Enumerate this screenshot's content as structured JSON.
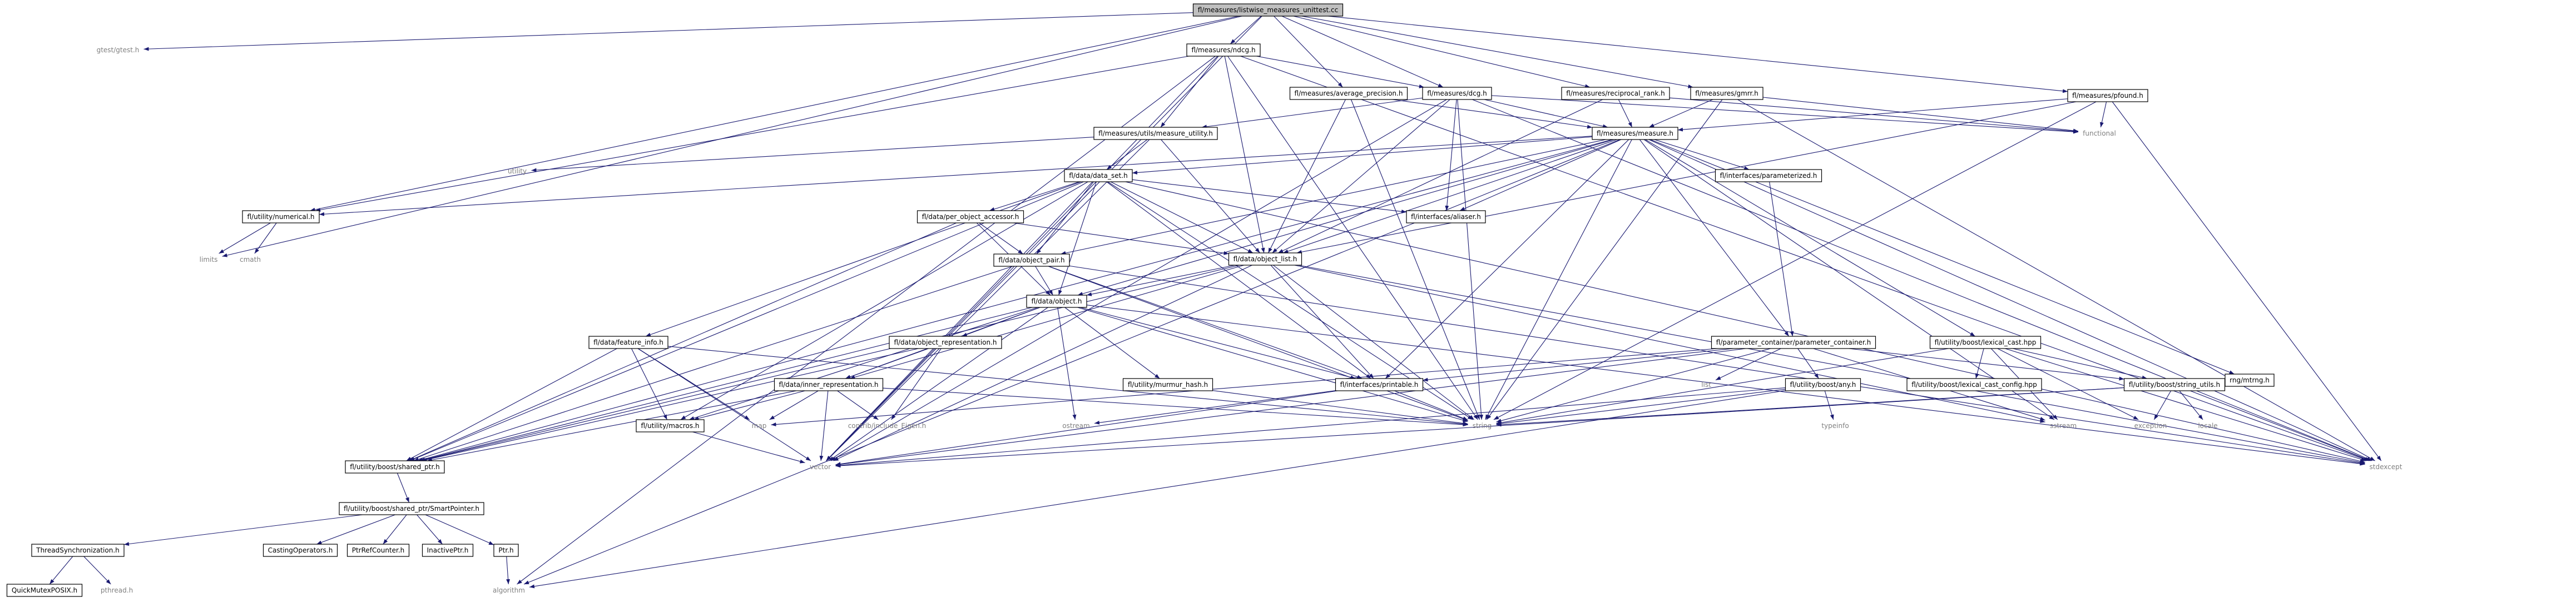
{
  "colors": {
    "edge": "#191970",
    "box_border": "#000000",
    "root_fill": "#bfbfbf",
    "box_fill": "#ffffff",
    "plain_text": "#808080",
    "box_text": "#000000"
  },
  "nodes": [
    {
      "id": "root",
      "label": "fl/measures/listwise_measures_unittest.cc",
      "kind": "root"
    },
    {
      "id": "gtest",
      "label": "gtest/gtest.h",
      "kind": "plain"
    },
    {
      "id": "ndcg",
      "label": "fl/measures/ndcg.h",
      "kind": "box"
    },
    {
      "id": "avgprec",
      "label": "fl/measures/average_precision.h",
      "kind": "box"
    },
    {
      "id": "dcg",
      "label": "fl/measures/dcg.h",
      "kind": "box"
    },
    {
      "id": "recip",
      "label": "fl/measures/reciprocal_rank.h",
      "kind": "box"
    },
    {
      "id": "gmrr",
      "label": "fl/measures/gmrr.h",
      "kind": "box"
    },
    {
      "id": "pfound",
      "label": "fl/measures/pfound.h",
      "kind": "box"
    },
    {
      "id": "measureutil",
      "label": "fl/measures/utils/measure_utility.h",
      "kind": "box"
    },
    {
      "id": "measure",
      "label": "fl/measures/measure.h",
      "kind": "box"
    },
    {
      "id": "functional",
      "label": "functional",
      "kind": "plain"
    },
    {
      "id": "utility",
      "label": "utility",
      "kind": "plain"
    },
    {
      "id": "dataset",
      "label": "fl/data/data_set.h",
      "kind": "box"
    },
    {
      "id": "paramized",
      "label": "fl/interfaces/parameterized.h",
      "kind": "box"
    },
    {
      "id": "numerical",
      "label": "fl/utility/numerical.h",
      "kind": "box"
    },
    {
      "id": "aliaser",
      "label": "fl/interfaces/aliaser.h",
      "kind": "box"
    },
    {
      "id": "perobj",
      "label": "fl/data/per_object_accessor.h",
      "kind": "box"
    },
    {
      "id": "limits",
      "label": "limits",
      "kind": "plain"
    },
    {
      "id": "cmath",
      "label": "cmath",
      "kind": "plain"
    },
    {
      "id": "objlist",
      "label": "fl/data/object_list.h",
      "kind": "box"
    },
    {
      "id": "objpair",
      "label": "fl/data/object_pair.h",
      "kind": "box"
    },
    {
      "id": "object",
      "label": "fl/data/object.h",
      "kind": "box"
    },
    {
      "id": "featinfo",
      "label": "fl/data/feature_info.h",
      "kind": "box"
    },
    {
      "id": "objrepr",
      "label": "fl/data/object_representation.h",
      "kind": "box"
    },
    {
      "id": "paramcont",
      "label": "fl/parameter_container/parameter_container.h",
      "kind": "box"
    },
    {
      "id": "lexcast",
      "label": "fl/utility/boost/lexical_cast.hpp",
      "kind": "box"
    },
    {
      "id": "innerrepr",
      "label": "fl/data/inner_representation.h",
      "kind": "box"
    },
    {
      "id": "murmur",
      "label": "fl/utility/murmur_hash.h",
      "kind": "box"
    },
    {
      "id": "printable",
      "label": "fl/interfaces/printable.h",
      "kind": "box"
    },
    {
      "id": "list",
      "label": "list",
      "kind": "plain"
    },
    {
      "id": "anyh",
      "label": "fl/utility/boost/any.h",
      "kind": "box"
    },
    {
      "id": "lexcfg",
      "label": "fl/utility/boost/lexical_cast_config.hpp",
      "kind": "box"
    },
    {
      "id": "strutils",
      "label": "fl/utility/boost/string_utils.h",
      "kind": "box"
    },
    {
      "id": "mtrng",
      "label": "rng/mtrng.h",
      "kind": "box"
    },
    {
      "id": "macros",
      "label": "fl/utility/macros.h",
      "kind": "box"
    },
    {
      "id": "map",
      "label": "map",
      "kind": "plain"
    },
    {
      "id": "eigen",
      "label": "contrib/include_Eigen.h",
      "kind": "plain"
    },
    {
      "id": "ostream",
      "label": "ostream",
      "kind": "plain"
    },
    {
      "id": "string",
      "label": "string",
      "kind": "plain"
    },
    {
      "id": "typeinfo",
      "label": "typeinfo",
      "kind": "plain"
    },
    {
      "id": "sstream",
      "label": "sstream",
      "kind": "plain"
    },
    {
      "id": "exception",
      "label": "exception",
      "kind": "plain"
    },
    {
      "id": "locale",
      "label": "locale",
      "kind": "plain"
    },
    {
      "id": "sharedptr",
      "label": "fl/utility/boost/shared_ptr.h",
      "kind": "box"
    },
    {
      "id": "vector",
      "label": "vector",
      "kind": "plain"
    },
    {
      "id": "stdexcept",
      "label": "stdexcept",
      "kind": "plain"
    },
    {
      "id": "smartptr",
      "label": "fl/utility/boost/shared_ptr/SmartPointer.h",
      "kind": "box"
    },
    {
      "id": "threadsync",
      "label": "ThreadSynchronization.h",
      "kind": "box"
    },
    {
      "id": "castops",
      "label": "CastingOperators.h",
      "kind": "box"
    },
    {
      "id": "ptrrefc",
      "label": "PtrRefCounter.h",
      "kind": "box"
    },
    {
      "id": "inactptr",
      "label": "InactivePtr.h",
      "kind": "box"
    },
    {
      "id": "ptrh",
      "label": "Ptr.h",
      "kind": "box"
    },
    {
      "id": "qmutex",
      "label": "QuickMutexPOSIX.h",
      "kind": "box"
    },
    {
      "id": "pthread",
      "label": "pthread.h",
      "kind": "plain"
    },
    {
      "id": "algorithm",
      "label": "algorithm",
      "kind": "plain"
    }
  ],
  "edges": [
    [
      "root",
      "gtest"
    ],
    [
      "root",
      "ndcg"
    ],
    [
      "root",
      "avgprec"
    ],
    [
      "root",
      "dcg"
    ],
    [
      "root",
      "recip"
    ],
    [
      "root",
      "gmrr"
    ],
    [
      "root",
      "pfound"
    ],
    [
      "root",
      "numerical"
    ],
    [
      "root",
      "limits"
    ],
    [
      "root",
      "vector"
    ],
    [
      "ndcg",
      "dcg"
    ],
    [
      "ndcg",
      "measureutil"
    ],
    [
      "ndcg",
      "numerical"
    ],
    [
      "ndcg",
      "objlist"
    ],
    [
      "ndcg",
      "algorithm"
    ],
    [
      "ndcg",
      "string"
    ],
    [
      "ndcg",
      "vector"
    ],
    [
      "ndcg",
      "stdexcept"
    ],
    [
      "avgprec",
      "measure"
    ],
    [
      "avgprec",
      "objlist"
    ],
    [
      "avgprec",
      "string"
    ],
    [
      "dcg",
      "measure"
    ],
    [
      "dcg",
      "measureutil"
    ],
    [
      "dcg",
      "objlist"
    ],
    [
      "dcg",
      "aliaser"
    ],
    [
      "dcg",
      "string"
    ],
    [
      "dcg",
      "functional"
    ],
    [
      "dcg",
      "stdexcept"
    ],
    [
      "dcg",
      "vector"
    ],
    [
      "recip",
      "measure"
    ],
    [
      "recip",
      "objlist"
    ],
    [
      "recip",
      "functional"
    ],
    [
      "gmrr",
      "measure"
    ],
    [
      "gmrr",
      "string"
    ],
    [
      "gmrr",
      "functional"
    ],
    [
      "gmrr",
      "stdexcept"
    ],
    [
      "pfound",
      "measure"
    ],
    [
      "pfound",
      "functional"
    ],
    [
      "pfound",
      "objlist"
    ],
    [
      "pfound",
      "string"
    ],
    [
      "pfound",
      "stdexcept"
    ],
    [
      "measureutil",
      "utility"
    ],
    [
      "measureutil",
      "dataset"
    ],
    [
      "measureutil",
      "objlist"
    ],
    [
      "measureutil",
      "vector"
    ],
    [
      "measure",
      "dataset"
    ],
    [
      "measure",
      "paramized"
    ],
    [
      "measure",
      "numerical"
    ],
    [
      "measure",
      "aliaser"
    ],
    [
      "measure",
      "objlist"
    ],
    [
      "measure",
      "objpair"
    ],
    [
      "measure",
      "object"
    ],
    [
      "measure",
      "printable"
    ],
    [
      "measure",
      "paramcont"
    ],
    [
      "measure",
      "lexcast"
    ],
    [
      "measure",
      "mtrng"
    ],
    [
      "measure",
      "string"
    ],
    [
      "measure",
      "sharedptr"
    ],
    [
      "measure",
      "sstream"
    ],
    [
      "measure",
      "stdexcept"
    ],
    [
      "measure",
      "algorithm"
    ],
    [
      "paramized",
      "paramcont"
    ],
    [
      "numerical",
      "limits"
    ],
    [
      "numerical",
      "cmath"
    ],
    [
      "dataset",
      "perobj"
    ],
    [
      "dataset",
      "objlist"
    ],
    [
      "dataset",
      "objpair"
    ],
    [
      "dataset",
      "object"
    ],
    [
      "dataset",
      "featinfo"
    ],
    [
      "dataset",
      "macros"
    ],
    [
      "dataset",
      "printable"
    ],
    [
      "dataset",
      "aliaser"
    ],
    [
      "dataset",
      "sharedptr"
    ],
    [
      "dataset",
      "vector"
    ],
    [
      "dataset",
      "string"
    ],
    [
      "dataset",
      "stdexcept"
    ],
    [
      "perobj",
      "objlist"
    ],
    [
      "perobj",
      "objpair"
    ],
    [
      "perobj",
      "object"
    ],
    [
      "perobj",
      "sharedptr"
    ],
    [
      "objlist",
      "object"
    ],
    [
      "objlist",
      "printable"
    ],
    [
      "objlist",
      "sharedptr"
    ],
    [
      "objlist",
      "innerrepr"
    ],
    [
      "objlist",
      "string"
    ],
    [
      "objlist",
      "vector"
    ],
    [
      "objlist",
      "stdexcept"
    ],
    [
      "objlist",
      "sstream"
    ],
    [
      "objpair",
      "object"
    ],
    [
      "objpair",
      "sharedptr"
    ],
    [
      "objpair",
      "printable"
    ],
    [
      "objpair",
      "string"
    ],
    [
      "objpair",
      "stdexcept"
    ],
    [
      "object",
      "objrepr"
    ],
    [
      "object",
      "innerrepr"
    ],
    [
      "object",
      "murmur"
    ],
    [
      "object",
      "printable"
    ],
    [
      "object",
      "macros"
    ],
    [
      "object",
      "sharedptr"
    ],
    [
      "object",
      "vector"
    ],
    [
      "object",
      "string"
    ],
    [
      "object",
      "ostream"
    ],
    [
      "object",
      "stdexcept"
    ],
    [
      "featinfo",
      "macros"
    ],
    [
      "featinfo",
      "sharedptr"
    ],
    [
      "featinfo",
      "map"
    ],
    [
      "featinfo",
      "string"
    ],
    [
      "featinfo",
      "vector"
    ],
    [
      "objrepr",
      "innerrepr"
    ],
    [
      "objrepr",
      "eigen"
    ],
    [
      "objrepr",
      "sharedptr"
    ],
    [
      "innerrepr",
      "macros"
    ],
    [
      "innerrepr",
      "map"
    ],
    [
      "innerrepr",
      "eigen"
    ],
    [
      "innerrepr",
      "vector"
    ],
    [
      "innerrepr",
      "sharedptr"
    ],
    [
      "innerrepr",
      "string"
    ],
    [
      "paramcont",
      "anyh"
    ],
    [
      "paramcont",
      "strutils"
    ],
    [
      "paramcont",
      "list"
    ],
    [
      "paramcont",
      "map"
    ],
    [
      "paramcont",
      "string"
    ],
    [
      "paramcont",
      "vector"
    ],
    [
      "paramcont",
      "printable"
    ],
    [
      "paramcont",
      "sstream"
    ],
    [
      "lexcast",
      "lexcfg"
    ],
    [
      "lexcast",
      "strutils"
    ],
    [
      "lexcast",
      "string"
    ],
    [
      "lexcast",
      "sstream"
    ],
    [
      "lexcast",
      "exception"
    ],
    [
      "lexcast",
      "stdexcept"
    ],
    [
      "anyh",
      "typeinfo"
    ],
    [
      "anyh",
      "algorithm"
    ],
    [
      "anyh",
      "vector"
    ],
    [
      "anyh",
      "string"
    ],
    [
      "strutils",
      "string"
    ],
    [
      "strutils",
      "locale"
    ],
    [
      "strutils",
      "vector"
    ],
    [
      "strutils",
      "stdexcept"
    ],
    [
      "strutils",
      "exception"
    ],
    [
      "printable",
      "string"
    ],
    [
      "printable",
      "ostream"
    ],
    [
      "printable",
      "vector"
    ],
    [
      "murmur",
      "string"
    ],
    [
      "macros",
      "vector"
    ],
    [
      "sharedptr",
      "smartptr"
    ],
    [
      "smartptr",
      "threadsync"
    ],
    [
      "smartptr",
      "castops"
    ],
    [
      "smartptr",
      "ptrrefc"
    ],
    [
      "smartptr",
      "inactptr"
    ],
    [
      "smartptr",
      "ptrh"
    ],
    [
      "threadsync",
      "qmutex"
    ],
    [
      "threadsync",
      "pthread"
    ],
    [
      "ptrh",
      "algorithm"
    ]
  ]
}
